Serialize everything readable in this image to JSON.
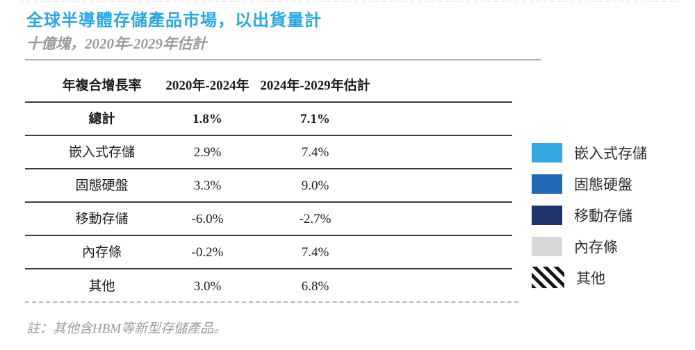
{
  "title": "全球半導體存儲產品市場，以出貨量計",
  "subtitle": "十億塊，2020年-2029年估計",
  "note": "註：其他含HBM等新型存儲產品。",
  "colors": {
    "title_accent": "#2ba7dd",
    "muted_gray_text": "#9a9a9a",
    "table_rule": "#3d3d3d"
  },
  "chart_data": {
    "type": "table",
    "title": "全球半導體存儲產品市場，以出貨量計",
    "subtitle": "十億塊，2020年-2029年估計",
    "unit": "十億塊",
    "columns": [
      "年複合增長率",
      "2020年-2024年",
      "2024年-2029年估計"
    ],
    "rows": [
      [
        "總計",
        "1.8%",
        "7.1%"
      ],
      [
        "嵌入式存儲",
        "2.9%",
        "7.4%"
      ],
      [
        "固態硬盤",
        "3.3%",
        "9.0%"
      ],
      [
        "移動存儲",
        "-6.0%",
        "-2.7%"
      ],
      [
        "內存條",
        "-0.2%",
        "7.4%"
      ],
      [
        "其他",
        "3.0%",
        "6.8%"
      ]
    ],
    "legend": [
      {
        "label": "嵌入式存儲",
        "color": "#35a8df",
        "pattern": "solid"
      },
      {
        "label": "固態硬盤",
        "color": "#2168b3",
        "pattern": "solid"
      },
      {
        "label": "移動存儲",
        "color": "#1e3368",
        "pattern": "solid"
      },
      {
        "label": "內存條",
        "color": "#d7d7d7",
        "pattern": "solid"
      },
      {
        "label": "其他",
        "color": null,
        "pattern": "diagonal-stripes"
      }
    ],
    "legend_position": "right",
    "note": "註：其他含HBM等新型存儲產品。"
  }
}
